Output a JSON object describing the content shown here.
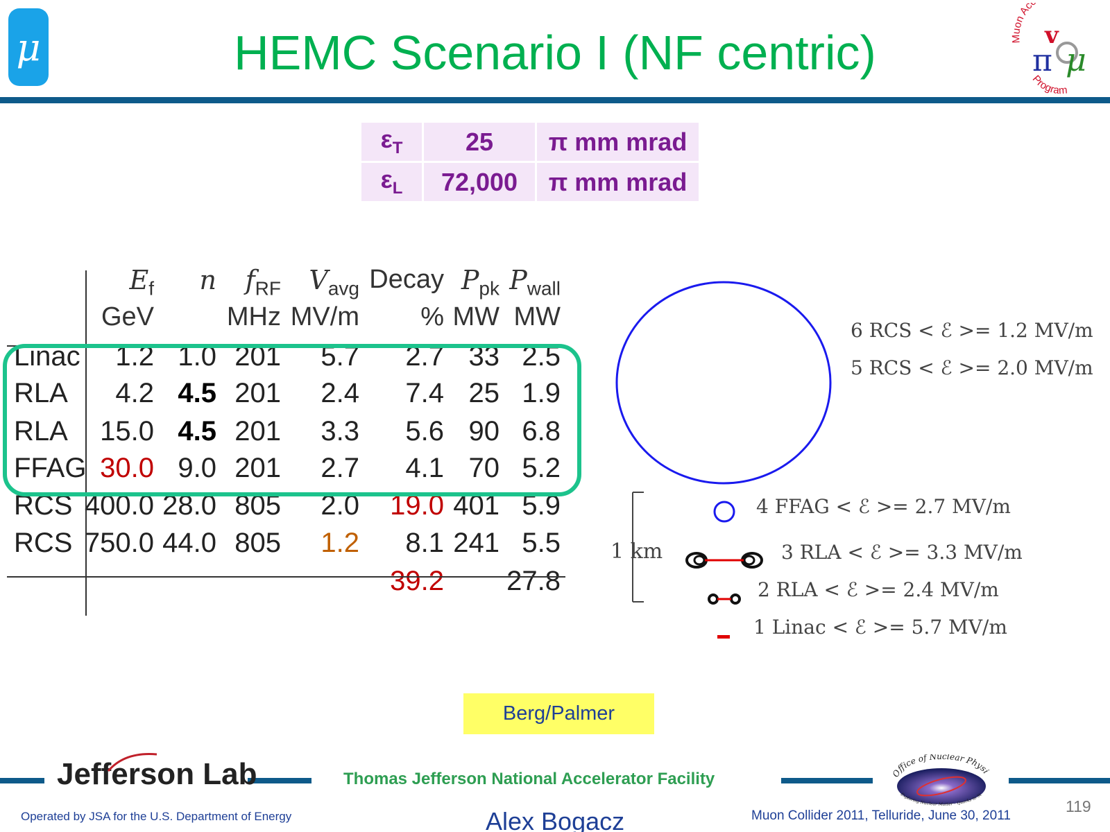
{
  "header": {
    "logo_symbol": "μ",
    "title": "HEMC Scenario I (NF centric)",
    "program_logo_text": [
      "Muon Accelerator",
      "Program"
    ]
  },
  "emittance": {
    "rows": [
      {
        "symbol": "ε",
        "sub": "T",
        "value": "25",
        "unit": "π mm mrad"
      },
      {
        "symbol": "ε",
        "sub": "L",
        "value": "72,000",
        "unit": "π mm mrad"
      }
    ]
  },
  "table": {
    "headers": [
      {
        "name": "E",
        "sub": "f",
        "unit": "GeV"
      },
      {
        "name": "n",
        "sub": "",
        "unit": ""
      },
      {
        "name": "f",
        "sub": "RF",
        "unit": "MHz"
      },
      {
        "name": "V",
        "sub": "avg",
        "unit": "MV/m"
      },
      {
        "name": "Decay",
        "sub": "",
        "unit": "%"
      },
      {
        "name": "P",
        "sub": "pk",
        "unit": "MW"
      },
      {
        "name": "P",
        "sub": "wall",
        "unit": "MW"
      }
    ],
    "rows": [
      {
        "label": "Linac",
        "cells": [
          "1.2",
          "1.0",
          "201",
          "5.7",
          "2.7",
          "33",
          "2.5"
        ]
      },
      {
        "label": "RLA",
        "cells": [
          "4.2",
          "4.5",
          "201",
          "2.4",
          "7.4",
          "25",
          "1.9"
        ]
      },
      {
        "label": "RLA",
        "cells": [
          "15.0",
          "4.5",
          "201",
          "3.3",
          "5.6",
          "90",
          "6.8"
        ]
      },
      {
        "label": "FFAG",
        "cells": [
          "30.0",
          "9.0",
          "201",
          "2.7",
          "4.1",
          "70",
          "5.2"
        ]
      },
      {
        "label": "RCS",
        "cells": [
          "400.0",
          "28.0",
          "805",
          "2.0",
          "19.0",
          "401",
          "5.9"
        ]
      },
      {
        "label": "RCS",
        "cells": [
          "750.0",
          "44.0",
          "805",
          "1.2",
          "8.1",
          "241",
          "5.5"
        ]
      }
    ],
    "totals": {
      "decay": "39.2",
      "pwall": "27.8"
    },
    "colors": {
      "red": "#c00000",
      "orange": "#c06000",
      "highlight_box": "#1cc38c"
    }
  },
  "diagram": {
    "labels": [
      "6 RCS < ℰ >= 1.2 MV/m",
      "5 RCS < ℰ >= 2.0 MV/m",
      "4 FFAG < ℰ >= 2.7 MV/m",
      "3  RLA < ℰ >= 3.3 MV/m",
      "2  RLA < ℰ >= 2.4 MV/m",
      "1 Linac < ℰ >= 5.7 MV/m"
    ],
    "scale_label": "1 km",
    "colors": {
      "ring": "#1a1aee",
      "rla": "#e00000"
    }
  },
  "credit": "Berg/Palmer",
  "footer": {
    "lab_name": "Jefferson Lab",
    "facility": "Thomas Jefferson National Accelerator Facility",
    "onp_lines": [
      "Office of Nuclear Physics",
      "Exploring Nuclear Matter - Quarks to Stars"
    ],
    "operated": "Operated by JSA for the U.S. Department of Energy",
    "author": "Alex Bogacz",
    "conference": "Muon Collider 2011, Telluride, June 30, 2011",
    "page_number": "119"
  }
}
